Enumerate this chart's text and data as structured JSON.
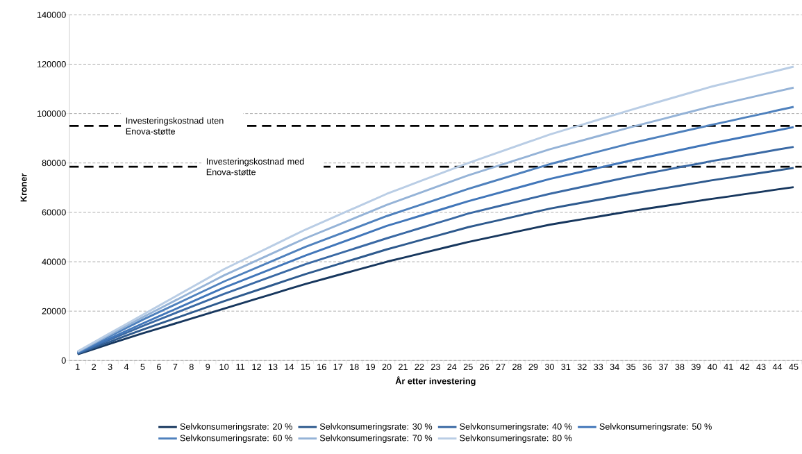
{
  "chart_data": {
    "type": "line",
    "xlabel": "År etter investering",
    "ylabel": "Kroner",
    "categories": [
      "1",
      "2",
      "3",
      "4",
      "5",
      "6",
      "7",
      "8",
      "9",
      "10",
      "11",
      "12",
      "13",
      "14",
      "15",
      "16",
      "17",
      "18",
      "19",
      "20",
      "21",
      "22",
      "23",
      "24",
      "25",
      "26",
      "27",
      "28",
      "29",
      "30",
      "31",
      "32",
      "33",
      "34",
      "35",
      "36",
      "37",
      "38",
      "39",
      "40",
      "41",
      "42",
      "43",
      "44",
      "45"
    ],
    "ylim": [
      0,
      140000
    ],
    "yticks": [
      0,
      20000,
      40000,
      60000,
      80000,
      100000,
      120000,
      140000
    ],
    "grid": "y",
    "legend": "bottom",
    "marker": "none",
    "line_style": "solid",
    "series": [
      {
        "name": "Selvkonsumeringsrate: 20 %",
        "color": "#17375e",
        "values": [
          2500,
          4600,
          6800,
          8900,
          11000,
          13000,
          15000,
          17000,
          19000,
          21000,
          23000,
          25000,
          27000,
          29000,
          31000,
          32800,
          34600,
          36400,
          38200,
          40000,
          41600,
          43200,
          44800,
          46400,
          48000,
          49400,
          50800,
          52200,
          53600,
          55000,
          56100,
          57200,
          58300,
          59400,
          60500,
          61500,
          62500,
          63500,
          64500,
          65500,
          66400,
          67400,
          68300,
          69300,
          70200
        ]
      },
      {
        "name": "Selvkonsumeringsrate: 30 %",
        "color": "#2e5a8e",
        "values": [
          2700,
          5200,
          7600,
          10100,
          12500,
          14800,
          17100,
          19400,
          21700,
          24000,
          26200,
          28400,
          30600,
          32800,
          35000,
          37000,
          39000,
          41000,
          43000,
          45000,
          46800,
          48600,
          50400,
          52200,
          54000,
          55500,
          57000,
          58500,
          60000,
          61500,
          62700,
          63900,
          65100,
          66300,
          67500,
          68600,
          69700,
          70800,
          71900,
          73000,
          74000,
          75000,
          76000,
          77000,
          78000
        ]
      },
      {
        "name": "Selvkonsumeringsrate: 40 %",
        "color": "#3a69a4",
        "values": [
          2900,
          5700,
          8500,
          11200,
          14000,
          16600,
          19200,
          21800,
          24400,
          27000,
          29400,
          31800,
          34200,
          36600,
          39000,
          41100,
          43200,
          45300,
          47400,
          49500,
          51500,
          53500,
          55500,
          57500,
          59500,
          61100,
          62700,
          64300,
          65900,
          67500,
          68900,
          70300,
          71700,
          73100,
          74500,
          75800,
          77000,
          78300,
          79500,
          80800,
          81900,
          83100,
          84200,
          85400,
          86500
        ]
      },
      {
        "name": "Selvkonsumeringsrate: 50 %",
        "color": "#4176b9",
        "values": [
          3100,
          6100,
          9000,
          12000,
          15000,
          17900,
          20800,
          23700,
          26600,
          29500,
          32100,
          34700,
          37300,
          39900,
          42500,
          44900,
          47300,
          49700,
          52100,
          54500,
          56500,
          58500,
          60500,
          62500,
          64500,
          66300,
          68100,
          69900,
          71700,
          73500,
          75000,
          76500,
          78000,
          79500,
          81000,
          82400,
          83800,
          85200,
          86600,
          88000,
          89300,
          90600,
          91900,
          93200,
          94500
        ]
      },
      {
        "name": "Selvkonsumeringsrate: 60 %",
        "color": "#4f81bd",
        "values": [
          3300,
          6600,
          9900,
          13200,
          16500,
          19600,
          22700,
          25800,
          28900,
          32000,
          34800,
          37600,
          40400,
          43200,
          46000,
          48500,
          51000,
          53500,
          56000,
          58500,
          60700,
          62900,
          65100,
          67300,
          69500,
          71500,
          73500,
          75500,
          77500,
          79500,
          81200,
          82900,
          84600,
          86300,
          88000,
          89500,
          91000,
          92500,
          94000,
          95500,
          96900,
          98400,
          99800,
          101300,
          102700
        ]
      },
      {
        "name": "Selvkonsumeringsrate: 70 %",
        "color": "#95b3d7",
        "values": [
          3500,
          7000,
          10500,
          14000,
          17500,
          20900,
          24300,
          27700,
          31100,
          34500,
          37500,
          40500,
          43500,
          46500,
          49500,
          52200,
          54900,
          57600,
          60300,
          63000,
          65400,
          67800,
          70200,
          72600,
          75000,
          77100,
          79200,
          81300,
          83400,
          85500,
          87300,
          89100,
          90900,
          92700,
          94500,
          96200,
          97900,
          99600,
          101300,
          103000,
          104500,
          106000,
          107500,
          109000,
          110500
        ]
      },
      {
        "name": "Selvkonsumeringsrate: 80 %",
        "color": "#b9cde5",
        "values": [
          3700,
          7400,
          11100,
          14800,
          18500,
          22200,
          25900,
          29600,
          33300,
          37000,
          40200,
          43400,
          46600,
          49800,
          53000,
          55900,
          58800,
          61700,
          64600,
          67500,
          70000,
          72500,
          75000,
          77500,
          80000,
          82300,
          84600,
          86900,
          89200,
          91500,
          93500,
          95500,
          97500,
          99500,
          101500,
          103400,
          105300,
          107200,
          109100,
          111000,
          112600,
          114200,
          115800,
          117400,
          119000
        ]
      }
    ],
    "ref_lines": [
      {
        "axis": "y",
        "value": 95000,
        "label": "Investeringskostnad uten Enova-støtte",
        "color": "#000000",
        "line_style": "dashed"
      },
      {
        "axis": "y",
        "value": 78500,
        "label": "Investeringskostnad med Enova-støtte",
        "color": "#000000",
        "line_style": "dashed"
      }
    ]
  }
}
